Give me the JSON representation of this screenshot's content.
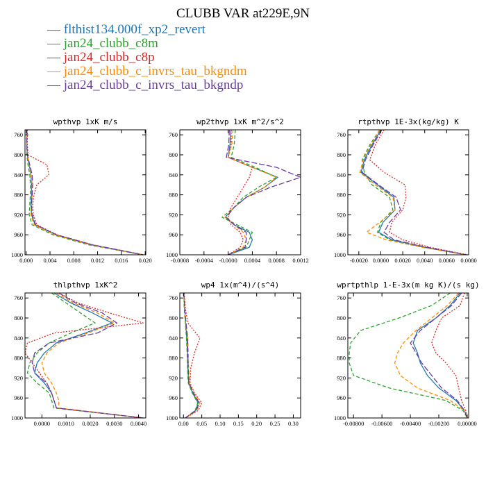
{
  "figure": {
    "title": "CLUBB VAR at229E,9N"
  },
  "legend": [
    {
      "label": "flthist134.000f_xp2_revert",
      "color": "#1f77b4",
      "style": "solid"
    },
    {
      "label": "jan24_clubb_c8m",
      "color": "#2ca02c",
      "style": "dashed"
    },
    {
      "label": "jan24_clubb_c8p",
      "color": "#d62728",
      "style": "dotted"
    },
    {
      "label": "jan24_clubb_c_invrs_tau_bkgndm",
      "color": "#ff8c00",
      "style": "dashed"
    },
    {
      "label": "jan24_clubb_c_invrs_tau_bkgndp",
      "color": "#6a3d9a",
      "style": "longdash"
    }
  ],
  "chart_data": [
    {
      "type": "line",
      "title": "wpthvp  1xK m/s",
      "xlim": [
        -0.0002,
        0.0201
      ],
      "ylim": [
        1000,
        750
      ],
      "xticks": [
        0.0,
        0.004,
        0.008,
        0.012,
        0.016,
        0.02
      ],
      "xtick_labels": [
        "0.000",
        "0.004",
        "0.008",
        "0.012",
        "0.016",
        "0.020"
      ],
      "yticks": [
        760,
        800,
        840,
        880,
        920,
        960,
        1000
      ],
      "ytick_labels": [
        "760",
        "800",
        "840",
        "880",
        "920",
        "960",
        "1000"
      ],
      "y": [
        750,
        780,
        800,
        820,
        840,
        860,
        880,
        900,
        920,
        940,
        960,
        980,
        1000
      ],
      "series": [
        {
          "values": [
            0.0001,
            0.0001,
            0.0002,
            0.0005,
            0.0008,
            0.0009,
            0.0009,
            0.0008,
            0.0009,
            0.0015,
            0.005,
            0.011,
            0.0196
          ]
        },
        {
          "values": [
            0.0001,
            0.0001,
            0.0001,
            0.0003,
            0.0006,
            0.0007,
            0.0007,
            0.0006,
            0.0005,
            0.001,
            0.0045,
            0.0105,
            0.0195
          ]
        },
        {
          "values": [
            0.0002,
            0.0002,
            0.0003,
            0.0035,
            0.0038,
            0.0018,
            0.0013,
            0.0011,
            0.0012,
            0.0018,
            0.0052,
            0.0112,
            0.0197
          ]
        },
        {
          "values": [
            0.0001,
            0.0001,
            0.0002,
            0.0005,
            0.0008,
            0.001,
            0.001,
            0.0009,
            0.0008,
            0.0013,
            0.0048,
            0.0108,
            0.0196
          ]
        },
        {
          "values": [
            0.0001,
            0.0001,
            0.0002,
            0.0006,
            0.001,
            0.0011,
            0.001,
            0.0009,
            0.001,
            0.0016,
            0.0051,
            0.0111,
            0.0197
          ]
        }
      ]
    },
    {
      "type": "line",
      "title": "wp2thvp  1xK m^2/s^2",
      "xlim": [
        -0.0008,
        0.0012
      ],
      "ylim": [
        1000,
        750
      ],
      "xticks": [
        -0.0008,
        -0.0004,
        0.0,
        0.0004,
        0.0008,
        0.0012
      ],
      "xtick_labels": [
        "-0.0008",
        "-0.0004",
        "-0.0000",
        "0.0004",
        "0.0008",
        "0.0012"
      ],
      "yticks": [
        760,
        800,
        840,
        880,
        920,
        960,
        1000
      ],
      "ytick_labels": [
        "760",
        "800",
        "840",
        "880",
        "920",
        "960",
        "1000"
      ],
      "y": [
        750,
        780,
        805,
        825,
        845,
        865,
        885,
        905,
        925,
        940,
        955,
        970,
        985,
        1000
      ],
      "series": [
        {
          "values": [
            5e-05,
            3e-05,
            0.0,
            0.0004,
            0.00082,
            0.0006,
            0.0003,
            0.0001,
            -5e-05,
            0.0001,
            0.00035,
            0.0004,
            0.00035,
            0.0
          ]
        },
        {
          "values": [
            0.00012,
            0.0001,
            5e-05,
            0.00045,
            0.0008,
            0.0005,
            0.00025,
            0.0001,
            -0.0001,
            0.00015,
            0.0004,
            0.00035,
            0.0003,
            0.0
          ]
        },
        {
          "values": [
            5e-05,
            5e-05,
            0.0,
            0.0004,
            0.00035,
            0.00025,
            0.00015,
            5e-05,
            0.0,
            5e-05,
            0.0002,
            0.00025,
            0.0002,
            0.0
          ]
        },
        {
          "values": [
            8e-05,
            6e-05,
            0.0,
            0.0004,
            0.0008,
            0.0006,
            0.0003,
            0.0001,
            -5e-05,
            0.0001,
            0.00025,
            0.0003,
            0.00025,
            0.0
          ]
        },
        {
          "values": [
            2e-05,
            1e-05,
            -3e-05,
            0.0008,
            0.0012,
            0.0007,
            0.0003,
            0.0001,
            -3e-05,
            0.0001,
            0.0003,
            0.0003,
            0.00028,
            0.0
          ]
        }
      ]
    },
    {
      "type": "line",
      "title": "rtpthvp  1E-3x(kg/kg) K",
      "xlim": [
        -0.003,
        0.008
      ],
      "ylim": [
        1000,
        750
      ],
      "xticks": [
        -0.002,
        0.0,
        0.002,
        0.004,
        0.006,
        0.008
      ],
      "xtick_labels": [
        "-0.0020",
        "0.0000",
        "0.0020",
        "0.0040",
        "0.0060",
        "0.0080"
      ],
      "yticks": [
        760,
        800,
        840,
        880,
        920,
        960,
        1000
      ],
      "ytick_labels": [
        "760",
        "800",
        "840",
        "880",
        "920",
        "960",
        "1000"
      ],
      "y": [
        750,
        780,
        810,
        835,
        860,
        885,
        910,
        935,
        955,
        970,
        985,
        1000
      ],
      "series": [
        {
          "values": [
            0.0,
            -0.0008,
            -0.0015,
            -0.0018,
            -0.0003,
            0.0012,
            0.0013,
            0.0002,
            -0.0002,
            0.001,
            0.004,
            0.0078
          ]
        },
        {
          "values": [
            -0.0001,
            -0.001,
            -0.0017,
            -0.0015,
            -0.0008,
            0.0008,
            0.0011,
            0.0,
            -0.0003,
            0.0008,
            0.0038,
            0.0078
          ]
        },
        {
          "values": [
            0.0003,
            -0.0005,
            -0.001,
            0.0003,
            0.0022,
            0.0023,
            0.002,
            0.001,
            0.0008,
            0.002,
            0.0045,
            0.0079
          ]
        },
        {
          "values": [
            -0.0001,
            -0.0009,
            -0.0016,
            -0.0019,
            -0.0005,
            0.0011,
            0.0013,
            -0.0001,
            -0.0013,
            0.0005,
            0.0038,
            0.0078
          ]
        },
        {
          "values": [
            0.0001,
            -0.0007,
            -0.0014,
            -0.0017,
            -0.0002,
            0.0014,
            0.0018,
            0.0008,
            0.0003,
            0.0012,
            0.0042,
            0.0078
          ]
        }
      ]
    },
    {
      "type": "line",
      "title": "thlpthvp  1xK^2",
      "xlim": [
        -0.0007,
        0.0043
      ],
      "ylim": [
        1000,
        750
      ],
      "xticks": [
        0.0,
        0.001,
        0.002,
        0.003,
        0.004
      ],
      "xtick_labels": [
        "0.0000",
        "0.0010",
        "0.0020",
        "0.0030",
        "0.0040"
      ],
      "yticks": [
        760,
        800,
        840,
        880,
        920,
        960,
        1000
      ],
      "ytick_labels": [
        "760",
        "800",
        "840",
        "880",
        "920",
        "960",
        "1000"
      ],
      "y": [
        750,
        770,
        790,
        810,
        830,
        850,
        870,
        890,
        910,
        930,
        950,
        965,
        980,
        1000
      ],
      "series": [
        {
          "values": [
            0.0005,
            0.0012,
            0.0021,
            0.0029,
            0.0018,
            0.0006,
            0.0001,
            -0.0002,
            -0.0003,
            0.0001,
            0.0004,
            0.0005,
            0.0006,
            0.0042
          ]
        },
        {
          "values": [
            0.0004,
            0.001,
            0.0016,
            0.0022,
            0.0012,
            0.0003,
            -0.0002,
            -0.0005,
            -0.0006,
            -0.0002,
            0.0003,
            0.0004,
            0.0005,
            0.0042
          ]
        },
        {
          "values": [
            0.0007,
            0.0015,
            0.0028,
            0.0042,
            0.0005,
            -0.0006,
            -0.0007,
            -0.0004,
            -0.0001,
            0.0002,
            0.0004,
            0.0005,
            0.0006,
            0.0042
          ]
        },
        {
          "values": [
            0.0006,
            0.0013,
            0.0023,
            0.003,
            0.0019,
            0.0007,
            0.0002,
            0.0,
            0.0001,
            0.0004,
            0.0006,
            0.0007,
            0.0007,
            0.0042
          ]
        },
        {
          "values": [
            0.0007,
            0.0014,
            0.0025,
            0.0031,
            0.0023,
            0.0003,
            -0.0003,
            -0.0004,
            -0.0003,
            0.0002,
            0.0004,
            0.0005,
            0.0006,
            0.0042
          ]
        }
      ]
    },
    {
      "type": "line",
      "title": "wp4  1x(m^4)/(s^4)",
      "xlim": [
        -0.01,
        0.32
      ],
      "ylim": [
        1000,
        750
      ],
      "xticks": [
        0.0,
        0.05,
        0.1,
        0.15,
        0.2,
        0.25,
        0.3
      ],
      "xtick_labels": [
        "0.00",
        "0.05",
        "0.10",
        "0.15",
        "0.20",
        "0.25",
        "0.30"
      ],
      "yticks": [
        760,
        800,
        840,
        880,
        920,
        960,
        1000
      ],
      "ytick_labels": [
        "760",
        "800",
        "840",
        "880",
        "920",
        "960",
        "1000"
      ],
      "y": [
        750,
        780,
        810,
        840,
        870,
        900,
        930,
        950,
        970,
        985,
        1000
      ],
      "series": [
        {
          "values": [
            0.001,
            0.003,
            0.006,
            0.009,
            0.011,
            0.012,
            0.014,
            0.025,
            0.04,
            0.033,
            0.005
          ]
        },
        {
          "values": [
            0.001,
            0.002,
            0.005,
            0.008,
            0.01,
            0.011,
            0.013,
            0.024,
            0.039,
            0.032,
            0.005
          ]
        },
        {
          "values": [
            0.002,
            0.005,
            0.012,
            0.045,
            0.03,
            0.02,
            0.018,
            0.03,
            0.05,
            0.04,
            0.006
          ]
        },
        {
          "values": [
            0.001,
            0.003,
            0.006,
            0.012,
            0.013,
            0.014,
            0.016,
            0.028,
            0.045,
            0.036,
            0.005
          ]
        },
        {
          "values": [
            0.001,
            0.003,
            0.007,
            0.011,
            0.012,
            0.013,
            0.015,
            0.027,
            0.043,
            0.035,
            0.005
          ]
        }
      ]
    },
    {
      "type": "line",
      "title": "wprtpthlp  1-E-3x(m kg K)/(s kg)",
      "xlim": [
        -0.0084,
        0.0001
      ],
      "ylim": [
        1000,
        750
      ],
      "xticks": [
        -0.008,
        -0.006,
        -0.004,
        -0.002,
        0.0
      ],
      "xtick_labels": [
        "-0.00800",
        "-0.00600",
        "-0.00400",
        "-0.00200",
        "0.00000"
      ],
      "yticks": [
        760,
        800,
        840,
        880,
        920,
        960,
        1000
      ],
      "ytick_labels": [
        "760",
        "800",
        "840",
        "880",
        "920",
        "960",
        "1000"
      ],
      "y": [
        750,
        775,
        800,
        825,
        850,
        870,
        890,
        915,
        940,
        965,
        985,
        1000
      ],
      "series": [
        {
          "values": [
            -0.0005,
            -0.0012,
            -0.0022,
            -0.0035,
            -0.0038,
            -0.0035,
            -0.0033,
            -0.0028,
            -0.002,
            -0.0008,
            -0.0002,
            0.0
          ]
        },
        {
          "values": [
            -0.0012,
            -0.0025,
            -0.0048,
            -0.0075,
            -0.0082,
            -0.0083,
            -0.0083,
            -0.008,
            -0.0055,
            -0.0015,
            -0.0003,
            0.0
          ]
        },
        {
          "values": [
            -0.0002,
            -0.0005,
            -0.0018,
            -0.0022,
            -0.0025,
            -0.0022,
            -0.0015,
            -0.0008,
            -0.0006,
            -0.0004,
            -0.0001,
            0.0
          ]
        },
        {
          "values": [
            -0.0006,
            -0.0014,
            -0.0025,
            -0.0036,
            -0.0045,
            -0.0049,
            -0.0051,
            -0.0047,
            -0.0035,
            -0.0012,
            -0.0002,
            0.0
          ]
        },
        {
          "values": [
            -0.0004,
            -0.0011,
            -0.0022,
            -0.0033,
            -0.004,
            -0.0036,
            -0.0032,
            -0.0025,
            -0.0018,
            -0.0007,
            -0.0002,
            0.0
          ]
        }
      ]
    }
  ]
}
